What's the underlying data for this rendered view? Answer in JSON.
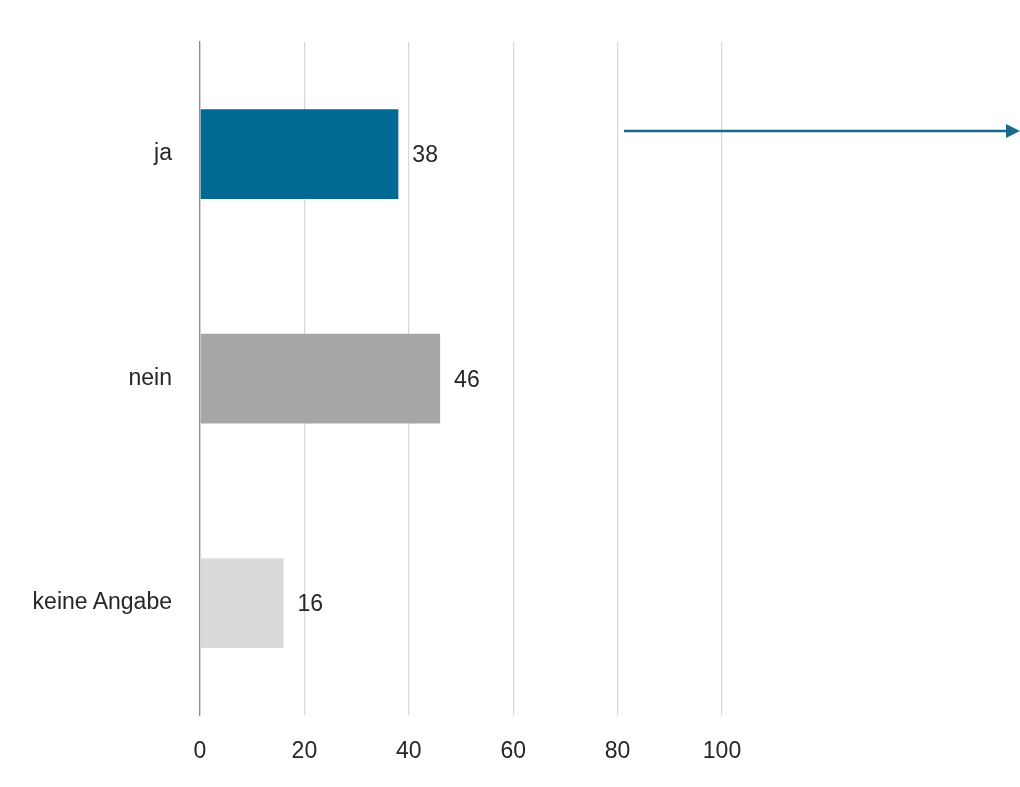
{
  "chart_data": {
    "type": "bar",
    "orientation": "horizontal",
    "categories": [
      "ja",
      "nein",
      "keine Angabe"
    ],
    "values": [
      38,
      46,
      16
    ],
    "colors": [
      "#006a94",
      "#a6a6a6",
      "#d9d9d9"
    ],
    "xlim": [
      0,
      100
    ],
    "xticks": [
      0,
      20,
      40,
      60,
      80,
      100
    ],
    "grid": "x",
    "legend": false,
    "data_labels": true
  }
}
